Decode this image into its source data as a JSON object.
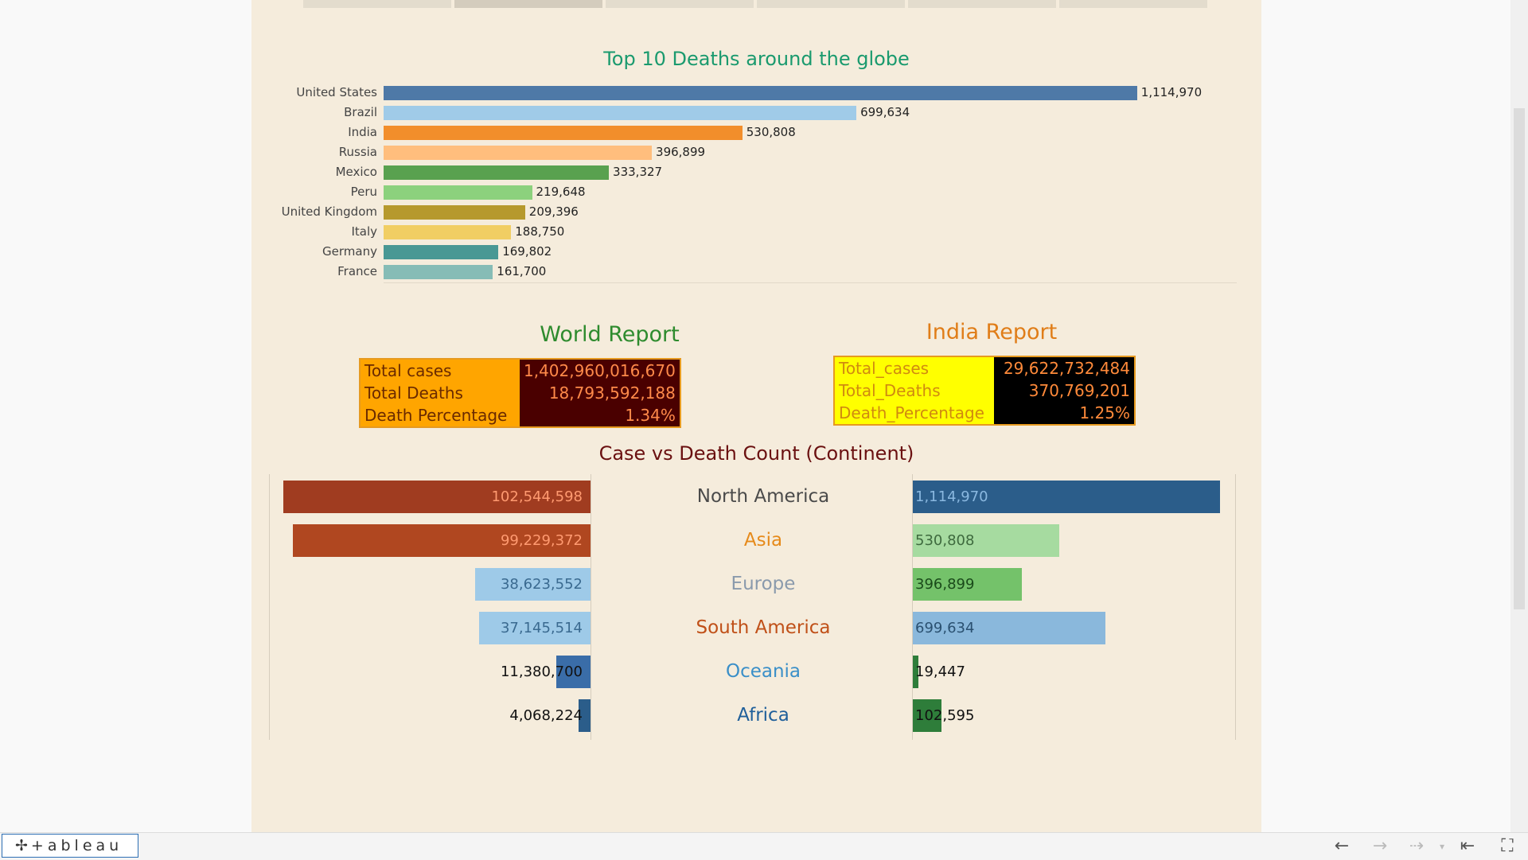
{
  "top10": {
    "title": "Top 10 Deaths around the globe",
    "rows": [
      {
        "country": "United States",
        "label": "1,114,970",
        "color": "#4e79a7"
      },
      {
        "country": "Brazil",
        "label": "699,634",
        "color": "#a0cbe8"
      },
      {
        "country": "India",
        "label": "530,808",
        "color": "#f28e2b"
      },
      {
        "country": "Russia",
        "label": "396,899",
        "color": "#ffbe7d"
      },
      {
        "country": "Mexico",
        "label": "333,327",
        "color": "#59a14f"
      },
      {
        "country": "Peru",
        "label": "219,648",
        "color": "#8cd17d"
      },
      {
        "country": "United Kingdom",
        "label": "209,396",
        "color": "#b6992d"
      },
      {
        "country": "Italy",
        "label": "188,750",
        "color": "#f1ce63"
      },
      {
        "country": "Germany",
        "label": "169,802",
        "color": "#499894"
      },
      {
        "country": "France",
        "label": "161,700",
        "color": "#86bcb6"
      }
    ]
  },
  "chart_data": [
    {
      "type": "bar",
      "title": "Top 10 Deaths around the globe",
      "categories": [
        "United States",
        "Brazil",
        "India",
        "Russia",
        "Mexico",
        "Peru",
        "United Kingdom",
        "Italy",
        "Germany",
        "France"
      ],
      "values": [
        1114970,
        699634,
        530808,
        396899,
        333327,
        219648,
        209396,
        188750,
        169802,
        161700
      ],
      "xlim": [
        0,
        1200000
      ]
    },
    {
      "type": "bar",
      "title": "Case vs Death Count (Continent)",
      "categories": [
        "North America",
        "Asia",
        "Europe",
        "South America",
        "Oceania",
        "Africa"
      ],
      "series": [
        {
          "values": [
            102544598,
            99229372,
            38623552,
            37145514,
            11380700,
            4068224
          ]
        },
        {
          "values": [
            1114970,
            530808,
            396899,
            699634,
            19447,
            102595
          ]
        }
      ]
    }
  ],
  "world_report": {
    "title": "World Report",
    "rows": [
      {
        "key": "Total cases",
        "value": "1,402,960,016,670"
      },
      {
        "key": "Total Deaths",
        "value": "18,793,592,188"
      },
      {
        "key": "Death Percentage",
        "value": "1.34%"
      }
    ]
  },
  "india_report": {
    "title": "India Report",
    "rows": [
      {
        "key": "Total_cases",
        "value": "29,622,732,484"
      },
      {
        "key": "Total_Deaths",
        "value": "370,769,201"
      },
      {
        "key": "Death_Percentage",
        "value": "1.25%"
      }
    ]
  },
  "continents": {
    "title": "Case vs Death Count (Continent)",
    "rows": [
      {
        "name": "North America",
        "name_color": "#4a4a4a",
        "cases": 102544598,
        "cases_label": "102,544,598",
        "case_color": "#a03c20",
        "case_text": "#ff9a70",
        "deaths": 1114970,
        "deaths_label": "1,114,970",
        "death_color": "#2b5d8a",
        "death_text": "#8ab8e0"
      },
      {
        "name": "Asia",
        "name_color": "#e68a1a",
        "cases": 99229372,
        "cases_label": "99,229,372",
        "case_color": "#b04720",
        "case_text": "#ff9a70",
        "deaths": 530808,
        "deaths_label": "530,808",
        "death_color": "#a6dba0",
        "death_text": "#3e6a3e"
      },
      {
        "name": "Europe",
        "name_color": "#8a9aac",
        "cases": 38623552,
        "cases_label": "38,623,552",
        "case_color": "#9ecae8",
        "case_text": "#3a6a90",
        "deaths": 396899,
        "deaths_label": "396,899",
        "death_color": "#74c26a",
        "death_text": "#1a4a1a"
      },
      {
        "name": "South America",
        "name_color": "#c05018",
        "cases": 37145514,
        "cases_label": "37,145,514",
        "case_color": "#9ecae8",
        "case_text": "#3a6a90",
        "deaths": 699634,
        "deaths_label": "699,634",
        "death_color": "#8ab8dc",
        "death_text": "#2a5070"
      },
      {
        "name": "Oceania",
        "name_color": "#3a8fc8",
        "cases": 11380700,
        "cases_label": "11,380,700",
        "case_color": "#3a6da8",
        "case_text": "#111111",
        "deaths": 19447,
        "deaths_label": "19,447",
        "death_color": "#2e7d3a",
        "death_text": "#111111"
      },
      {
        "name": "Africa",
        "name_color": "#1f5f9a",
        "cases": 4068224,
        "cases_label": "4,068,224",
        "case_color": "#2b5d8a",
        "case_text": "#111111",
        "deaths": 102595,
        "deaths_label": "102,595",
        "death_color": "#2e7d3a",
        "death_text": "#111111"
      }
    ]
  },
  "toolbar": {
    "logo_text": "+ableau",
    "logo_icon": "tableau-cross-icon",
    "icons": [
      "undo-icon",
      "redo-icon",
      "revert-icon",
      "dropdown-icon",
      "reset-icon",
      "fullscreen-icon"
    ]
  }
}
